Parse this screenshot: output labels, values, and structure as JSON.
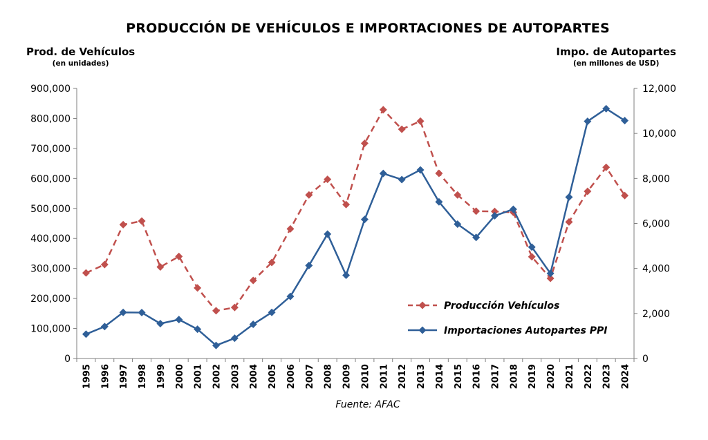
{
  "chart_data": {
    "type": "line",
    "title": "PRODUCCIÓN DE VEHÍCULOS E IMPORTACIONES DE AUTOPARTES",
    "ylabel_left": "Prod. de Vehículos",
    "ylabel_left_sub": "(en unidades)",
    "ylabel_right": "Impo. de Autopartes",
    "ylabel_right_sub": "(en millones de USD)",
    "source": "Fuente: AFAC",
    "x": [
      "1995",
      "1996",
      "1997",
      "1998",
      "1999",
      "2000",
      "2001",
      "2002",
      "2003",
      "2004",
      "2005",
      "2006",
      "2007",
      "2008",
      "2009",
      "2010",
      "2011",
      "2012",
      "2013",
      "2014",
      "2015",
      "2016",
      "2017",
      "2018",
      "2019",
      "2020",
      "2021",
      "2022",
      "2023",
      "2024"
    ],
    "ylim_left": [
      0,
      900000
    ],
    "yticks_left": [
      0,
      100000,
      200000,
      300000,
      400000,
      500000,
      600000,
      700000,
      800000,
      900000
    ],
    "yticks_left_labels": [
      "0",
      "100,000",
      "200,000",
      "300,000",
      "400,000",
      "500,000",
      "600,000",
      "700,000",
      "800,000",
      "900,000"
    ],
    "ylim_right": [
      0,
      12000
    ],
    "yticks_right": [
      0,
      2000,
      4000,
      6000,
      8000,
      10000,
      12000
    ],
    "yticks_right_labels": [
      "0",
      "2,000",
      "4,000",
      "6,000",
      "8,000",
      "10,000",
      "12,000"
    ],
    "legend_position": "center-right",
    "grid": false,
    "series": [
      {
        "name": "Producción Vehículos",
        "axis": "left",
        "color": "#c0504d",
        "style": "dashed",
        "marker": "diamond",
        "values": [
          285000,
          313000,
          446000,
          458000,
          305000,
          340000,
          235000,
          159000,
          170000,
          260000,
          320000,
          432000,
          545000,
          597000,
          513000,
          717000,
          829000,
          764000,
          791000,
          617000,
          545000,
          491000,
          490000,
          487000,
          339000,
          267000,
          455000,
          557000,
          637000,
          543000
        ]
      },
      {
        "name": "Importaciones Autopartes PPI",
        "axis": "right",
        "color": "#2f5f98",
        "style": "solid",
        "marker": "diamond",
        "values": [
          1080,
          1420,
          2050,
          2040,
          1550,
          1730,
          1300,
          580,
          900,
          1520,
          2050,
          2760,
          4130,
          5530,
          3700,
          6180,
          8220,
          7950,
          8380,
          6960,
          5970,
          5380,
          6340,
          6630,
          4950,
          3780,
          7170,
          10540,
          11100,
          10570
        ]
      }
    ]
  }
}
